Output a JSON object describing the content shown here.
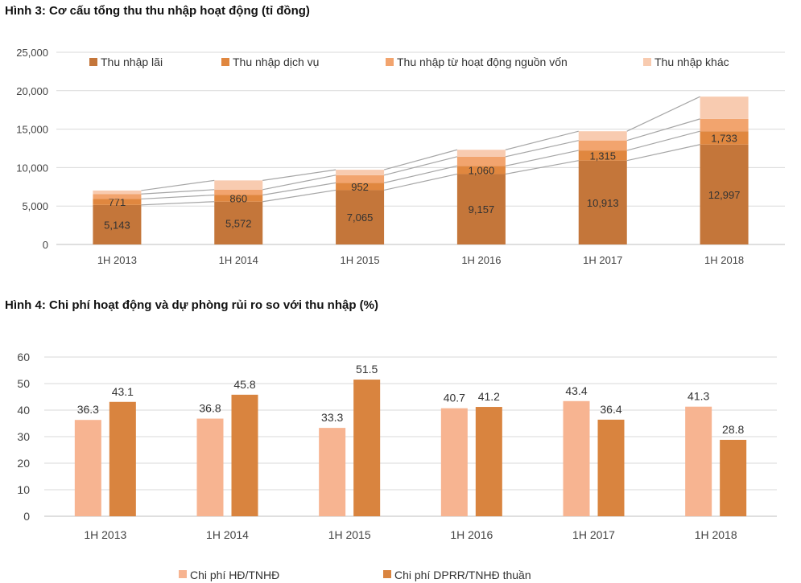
{
  "chart_data": [
    {
      "type": "bar",
      "stacked": true,
      "title": "Hình 3: Cơ cấu tổng thu thu nhập hoạt động (tỉ đồng)",
      "categories": [
        "1H 2013",
        "1H 2014",
        "1H 2015",
        "1H 2016",
        "1H 2017",
        "1H 2018"
      ],
      "ylim": [
        0,
        25000
      ],
      "yticks": [
        0,
        5000,
        10000,
        15000,
        20000,
        25000
      ],
      "ytick_labels": [
        "0",
        "5,000",
        "10,000",
        "15,000",
        "20,000",
        "25,000"
      ],
      "grid": true,
      "legend_position": "top",
      "series": [
        {
          "name": "Thu nhập lãi",
          "color": "#C4763A",
          "values": [
            5143,
            5572,
            7065,
            9157,
            10913,
            12997
          ],
          "labels": [
            "5,143",
            "5,572",
            "7,065",
            "9,157",
            "10,913",
            "12,997"
          ]
        },
        {
          "name": "Thu nhập dịch vụ",
          "color": "#E0873F",
          "values": [
            771,
            860,
            952,
            1060,
            1315,
            1733
          ],
          "labels": [
            "771",
            "860",
            "952",
            "1,060",
            "1,315",
            "1,733"
          ]
        },
        {
          "name": "Thu nhập từ hoạt động nguồn vốn",
          "color": "#F2A46E",
          "values": [
            650,
            700,
            1000,
            1200,
            1300,
            1600
          ],
          "labels": null
        },
        {
          "name": "Thu nhập khác",
          "color": "#F8CBB0",
          "values": [
            450,
            1200,
            700,
            900,
            1200,
            2900
          ],
          "labels": null
        }
      ]
    },
    {
      "type": "bar",
      "title": "Hình 4: Chi phí hoạt động và dự phòng rủi ro so với thu nhập (%)",
      "categories": [
        "1H 2013",
        "1H 2014",
        "1H 2015",
        "1H 2016",
        "1H 2017",
        "1H 2018"
      ],
      "ylim": [
        0,
        60
      ],
      "yticks": [
        0,
        10,
        20,
        30,
        40,
        50,
        60
      ],
      "ytick_labels": [
        "0",
        "10",
        "20",
        "30",
        "40",
        "50",
        "60"
      ],
      "grid": true,
      "legend_position": "bottom",
      "series": [
        {
          "name": "Chi phí HĐ/TNHĐ",
          "color": "#F7B491",
          "values": [
            36.3,
            36.8,
            33.3,
            40.7,
            43.4,
            41.3
          ],
          "labels": [
            "36.3",
            "36.8",
            "33.3",
            "40.7",
            "43.4",
            "41.3"
          ]
        },
        {
          "name": "Chi phí DPRR/TNHĐ thuần",
          "color": "#D9843F",
          "values": [
            43.1,
            45.8,
            51.5,
            41.2,
            36.4,
            28.8
          ],
          "labels": [
            "43.1",
            "45.8",
            "51.5",
            "41.2",
            "36.4",
            "28.8"
          ]
        }
      ]
    }
  ]
}
